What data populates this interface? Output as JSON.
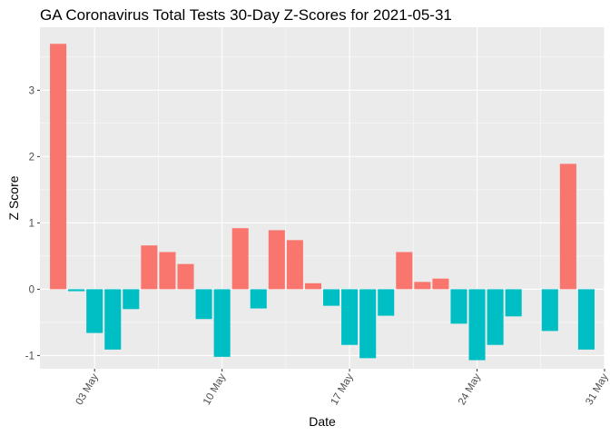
{
  "chart_data": {
    "type": "bar",
    "title": "GA Coronavirus Total Tests 30-Day Z-Scores for 2021-05-31",
    "xlabel": "Date",
    "ylabel": "Z Score",
    "ylim": [
      -1.2,
      3.95
    ],
    "xlim": [
      "2021-04-30",
      "2021-05-31"
    ],
    "y_ticks": [
      -1,
      0,
      1,
      2,
      3
    ],
    "x_ticks": [
      {
        "date": "2021-05-03",
        "label": "03 May"
      },
      {
        "date": "2021-05-10",
        "label": "10 May"
      },
      {
        "date": "2021-05-17",
        "label": "17 May"
      },
      {
        "date": "2021-05-24",
        "label": "24 May"
      },
      {
        "date": "2021-05-31",
        "label": "31 May"
      }
    ],
    "grid": true,
    "legend": "none",
    "colors": {
      "positive": "#F8766D",
      "negative": "#00BFC4",
      "panel": "#EBEBEB",
      "grid": "#FFFFFF"
    },
    "dates": [
      "2021-05-01",
      "2021-05-02",
      "2021-05-03",
      "2021-05-04",
      "2021-05-05",
      "2021-05-06",
      "2021-05-07",
      "2021-05-08",
      "2021-05-09",
      "2021-05-10",
      "2021-05-11",
      "2021-05-12",
      "2021-05-13",
      "2021-05-14",
      "2021-05-15",
      "2021-05-16",
      "2021-05-17",
      "2021-05-18",
      "2021-05-19",
      "2021-05-20",
      "2021-05-21",
      "2021-05-22",
      "2021-05-23",
      "2021-05-24",
      "2021-05-25",
      "2021-05-26",
      "2021-05-27",
      "2021-05-28",
      "2021-05-29",
      "2021-05-30"
    ],
    "values": [
      3.7,
      -0.03,
      -0.66,
      -0.91,
      -0.3,
      0.66,
      0.56,
      0.38,
      -0.45,
      -1.02,
      0.92,
      -0.29,
      0.89,
      0.74,
      0.09,
      -0.25,
      -0.84,
      -1.04,
      -0.4,
      0.56,
      0.11,
      0.16,
      -0.52,
      -1.07,
      -0.84,
      -0.41,
      null,
      -0.63,
      1.89,
      -0.91
    ]
  }
}
